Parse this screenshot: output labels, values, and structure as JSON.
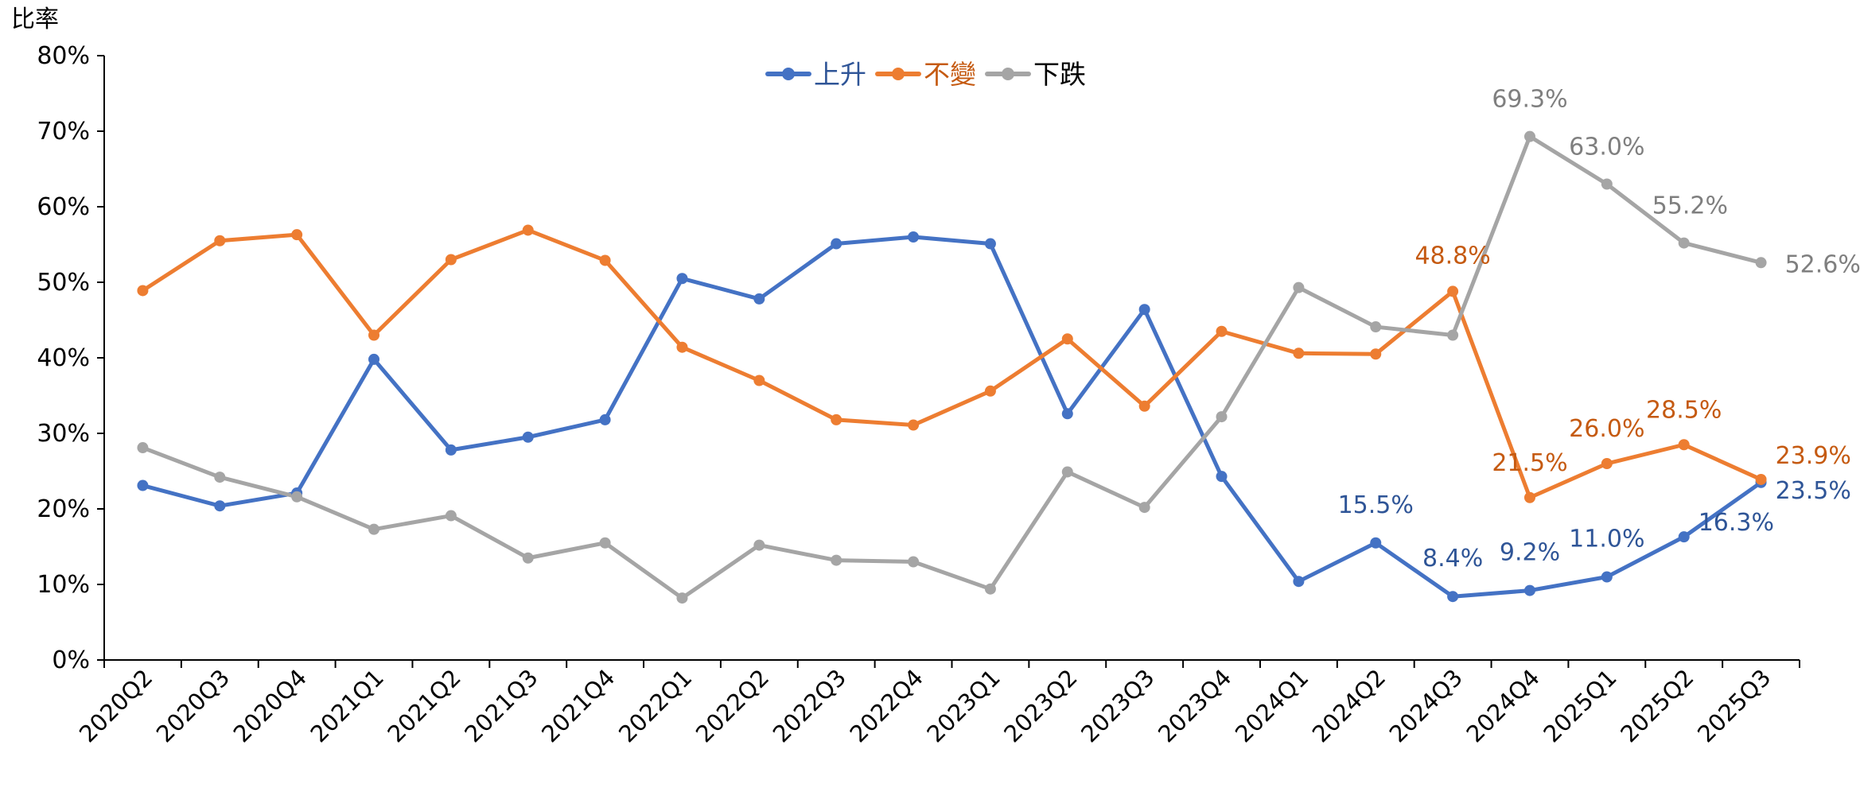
{
  "chart_data": {
    "type": "line",
    "title": "",
    "ylabel": "比率",
    "xlabel": "",
    "ylim": [
      0,
      80
    ],
    "yticks": [
      "0%",
      "10%",
      "20%",
      "30%",
      "40%",
      "50%",
      "60%",
      "70%",
      "80%"
    ],
    "grid": false,
    "legend_position": "top-center",
    "categories": [
      "2020Q2",
      "2020Q3",
      "2020Q4",
      "2021Q1",
      "2021Q2",
      "2021Q3",
      "2021Q4",
      "2022Q1",
      "2022Q2",
      "2022Q3",
      "2022Q4",
      "2023Q1",
      "2023Q2",
      "2023Q3",
      "2023Q4",
      "2024Q1",
      "2024Q2",
      "2024Q3",
      "2024Q4",
      "2025Q1",
      "2025Q2",
      "2025Q3"
    ],
    "series": [
      {
        "name": "上升",
        "color": "#4472C4",
        "label_color": "#2F5597",
        "values": [
          23.1,
          20.4,
          22.1,
          39.8,
          27.8,
          29.5,
          31.8,
          50.5,
          47.8,
          55.1,
          56.0,
          55.1,
          32.6,
          46.4,
          24.3,
          10.4,
          15.5,
          8.4,
          9.2,
          11.0,
          16.3,
          23.5
        ],
        "labels": {
          "16": "15.5%",
          "17": "8.4%",
          "18": "9.2%",
          "19": "11.0%",
          "20": "16.3%",
          "21": "23.5%"
        }
      },
      {
        "name": "不變",
        "color": "#ED7D31",
        "label_color": "#C55A11",
        "values": [
          48.9,
          55.5,
          56.3,
          43.0,
          53.0,
          56.9,
          52.9,
          41.4,
          37.0,
          31.8,
          31.1,
          35.6,
          42.5,
          33.6,
          43.5,
          40.6,
          40.5,
          48.8,
          21.5,
          26.0,
          28.5,
          23.9
        ],
        "labels": {
          "17": "48.8%",
          "18": "21.5%",
          "19": "26.0%",
          "20": "28.5%",
          "21": "23.9%"
        }
      },
      {
        "name": "下跌",
        "color": "#A5A5A5",
        "label_color": "#7F7F7F",
        "values": [
          28.1,
          24.2,
          21.6,
          17.3,
          19.1,
          13.5,
          15.5,
          8.2,
          15.2,
          13.2,
          13.0,
          9.4,
          24.9,
          20.2,
          32.2,
          49.3,
          44.1,
          43.0,
          69.3,
          63.0,
          55.2,
          52.6
        ],
        "labels": {
          "18": "69.3%",
          "19": "63.0%",
          "20": "55.2%",
          "21": "52.6%"
        }
      }
    ]
  }
}
